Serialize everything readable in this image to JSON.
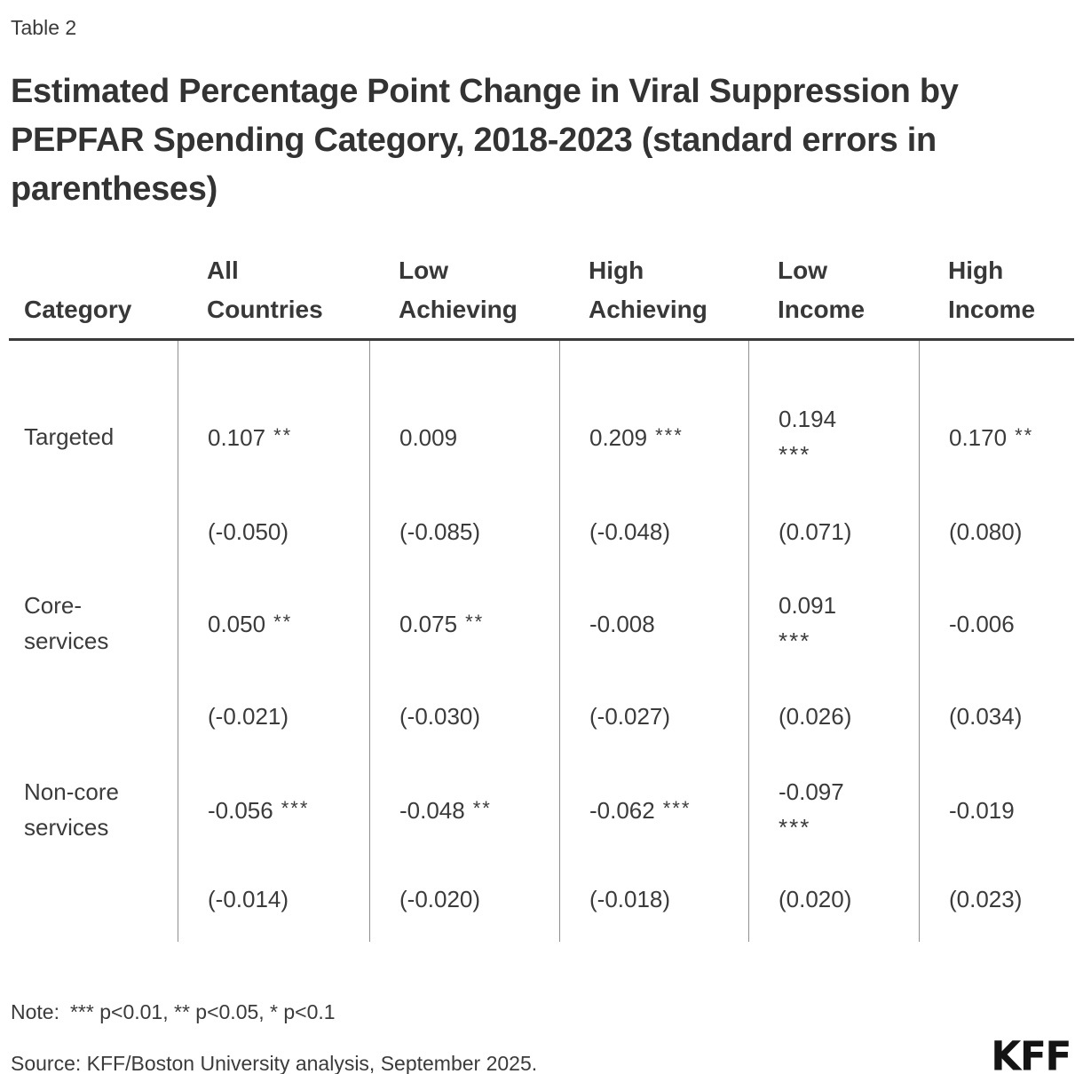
{
  "page": {
    "table_label": "Table 2",
    "title": "Estimated Percentage Point Change in Viral Suppression by PEPFAR Spending Category, 2018-2023 (standard errors in parentheses)",
    "note": {
      "label": "Note:",
      "text": "*** p<0.01, ** p<0.05, * p<0.1"
    },
    "source": "Source: KFF/Boston University analysis, September 2025.",
    "logo_text": "KFF",
    "colors": {
      "text": "#3b3b3b",
      "header_rule": "#3a3a3a",
      "grid_line": "#8f8f8f",
      "logo": "#141414",
      "background": "#ffffff"
    }
  },
  "table": {
    "columns": [
      {
        "label": "Category"
      },
      {
        "label": "All Countries"
      },
      {
        "label": "Low Achieving"
      },
      {
        "label": "High Achieving"
      },
      {
        "label": "Low Income"
      },
      {
        "label": "High Income"
      }
    ],
    "rows": [
      {
        "category": "Targeted",
        "estimates": [
          {
            "value": "0.107",
            "stars": "**"
          },
          {
            "value": "0.009",
            "stars": ""
          },
          {
            "value": "0.209",
            "stars": "***"
          },
          {
            "value": "0.194",
            "stars": "***"
          },
          {
            "value": "0.170",
            "stars": "**"
          }
        ],
        "std_errors": [
          "(-0.050)",
          "(-0.085)",
          "(-0.048)",
          "(0.071)",
          "(0.080)"
        ]
      },
      {
        "category": "Core-services",
        "estimates": [
          {
            "value": "0.050",
            "stars": "**"
          },
          {
            "value": "0.075",
            "stars": "**"
          },
          {
            "value": "-0.008",
            "stars": ""
          },
          {
            "value": "0.091",
            "stars": "***"
          },
          {
            "value": "-0.006",
            "stars": ""
          }
        ],
        "std_errors": [
          "(-0.021)",
          "(-0.030)",
          "(-0.027)",
          "(0.026)",
          "(0.034)"
        ]
      },
      {
        "category": "Non-core services",
        "estimates": [
          {
            "value": "-0.056",
            "stars": "***"
          },
          {
            "value": "-0.048",
            "stars": "**"
          },
          {
            "value": "-0.062",
            "stars": "***"
          },
          {
            "value": "-0.097",
            "stars": "***"
          },
          {
            "value": "-0.019",
            "stars": ""
          }
        ],
        "std_errors": [
          "(-0.014)",
          "(-0.020)",
          "(-0.018)",
          "(0.020)",
          "(0.023)"
        ]
      }
    ]
  },
  "chart_data": {
    "type": "table",
    "title": "Estimated Percentage Point Change in Viral Suppression by PEPFAR Spending Category, 2018-2023 (standard errors in parentheses)",
    "columns": [
      "Category",
      "All Countries",
      "Low Achieving",
      "High Achieving",
      "Low Income",
      "High Income"
    ],
    "rows": [
      [
        "Targeted",
        "0.107 **",
        "0.009",
        "0.209 ***",
        "0.194 ***",
        "0.170 **"
      ],
      [
        "",
        "(-0.050)",
        "(-0.085)",
        "(-0.048)",
        "(0.071)",
        "(0.080)"
      ],
      [
        "Core-services",
        "0.050 **",
        "0.075 **",
        "-0.008",
        "0.091 ***",
        "-0.006"
      ],
      [
        "",
        "(-0.021)",
        "(-0.030)",
        "(-0.027)",
        "(0.026)",
        "(0.034)"
      ],
      [
        "Non-core services",
        "-0.056 ***",
        "-0.048 **",
        "-0.062 ***",
        "-0.097 ***",
        "-0.019"
      ],
      [
        "",
        "(-0.014)",
        "(-0.020)",
        "(-0.018)",
        "(0.020)",
        "(0.023)"
      ]
    ],
    "note": "*** p<0.01, ** p<0.05, * p<0.1",
    "source": "Source: KFF/Boston University analysis, September 2025.",
    "layout_hints": {
      "grid": "vertical-column-separators-only",
      "header_rule": true,
      "bottom_rule": false
    }
  }
}
